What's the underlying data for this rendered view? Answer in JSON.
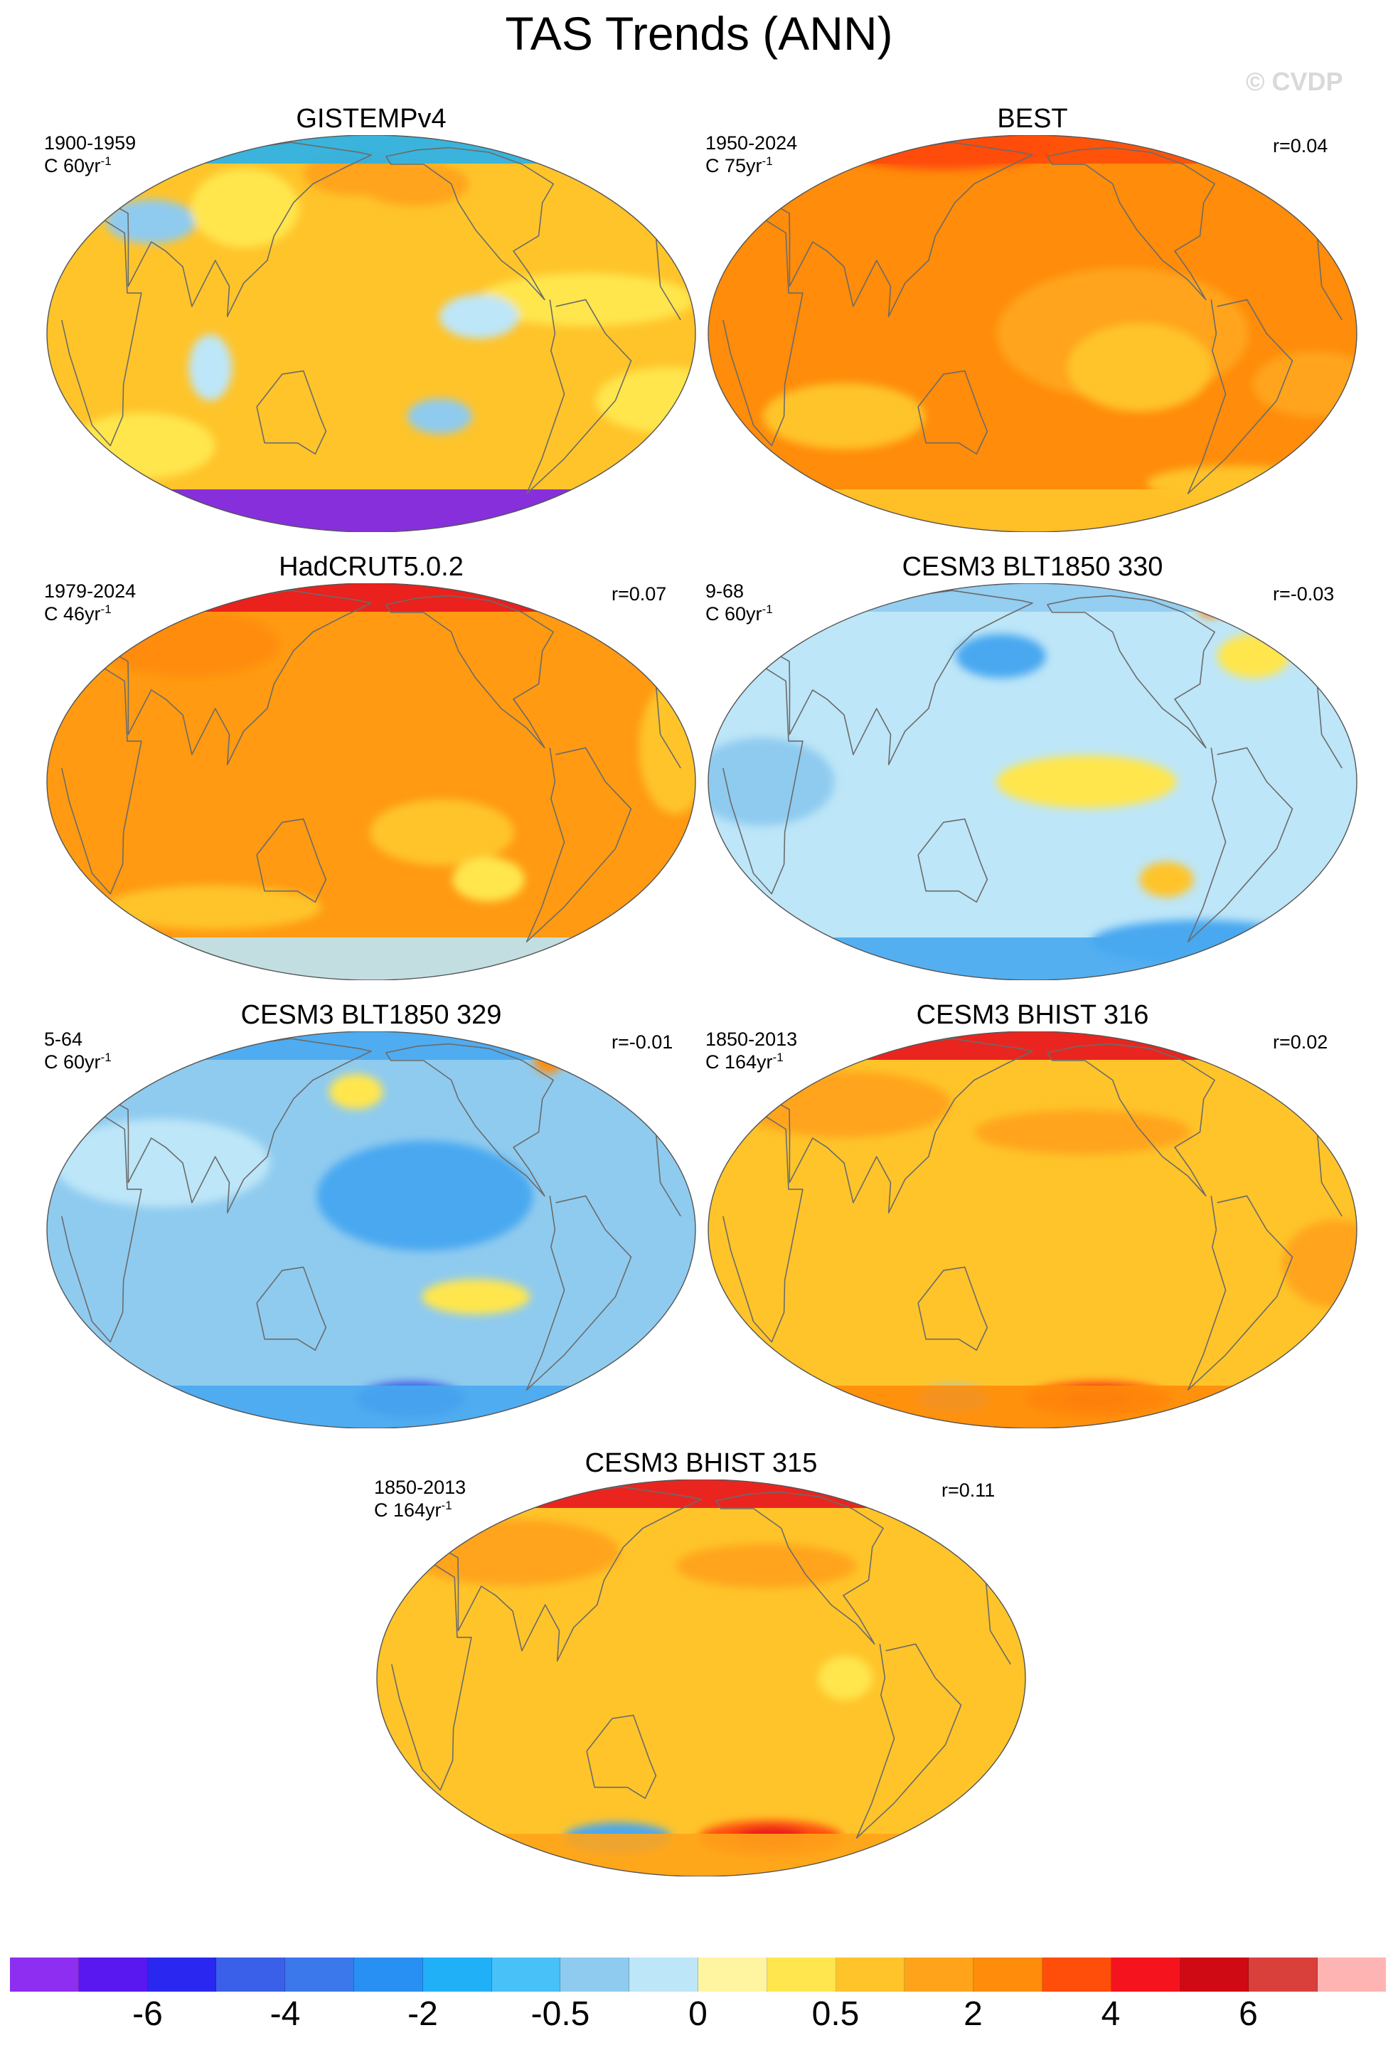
{
  "title": "TAS Trends (ANN)",
  "watermark": "© CVDP",
  "panels": [
    {
      "title": "GISTEMPv4",
      "period": "1900-1959",
      "units": "C 60yr",
      "r": "",
      "base": "#ffc42a",
      "blobs": [
        {
          "c": "#ffe64e",
          "lon": -60,
          "lat": 10,
          "rx": 60,
          "ry": 12
        },
        {
          "c": "#ffe64e",
          "lon": 40,
          "lat": -35,
          "rx": 40,
          "ry": 15
        },
        {
          "c": "#bde6f8",
          "lon": -120,
          "lat": 5,
          "rx": 22,
          "ry": 10
        },
        {
          "c": "#8fcbef",
          "lon": -140,
          "lat": -25,
          "rx": 18,
          "ry": 8
        },
        {
          "c": "#8fcbef",
          "lon": 45,
          "lat": 35,
          "rx": 25,
          "ry": 10
        },
        {
          "c": "#ffe64e",
          "lon": 100,
          "lat": 40,
          "rx": 30,
          "ry": 18
        },
        {
          "c": "#ffa41a",
          "lon": 170,
          "lat": 55,
          "rx": 30,
          "ry": 10
        },
        {
          "c": "#ffa41a",
          "lon": -150,
          "lat": 50,
          "rx": 30,
          "ry": 10
        },
        {
          "c": "#bde6f8",
          "lon": 90,
          "lat": -10,
          "rx": 12,
          "ry": 15
        },
        {
          "c": "#ffe64e",
          "lon": -10,
          "lat": -20,
          "rx": 40,
          "ry": 15
        }
      ],
      "south": "#7b1ff0",
      "north": "#25b3f0"
    },
    {
      "title": "BEST",
      "period": "1950-2024",
      "units": "C 75yr",
      "r": "r=0.04",
      "base": "#ff8c0a",
      "blobs": [
        {
          "c": "#ffa41a",
          "lon": -130,
          "lat": 0,
          "rx": 70,
          "ry": 30
        },
        {
          "c": "#ffc42a",
          "lon": -120,
          "lat": -10,
          "rx": 40,
          "ry": 20
        },
        {
          "c": "#ffc42a",
          "lon": 70,
          "lat": -25,
          "rx": 45,
          "ry": 15
        },
        {
          "c": "#ffa41a",
          "lon": -20,
          "lat": -15,
          "rx": 35,
          "ry": 15
        },
        {
          "c": "#ff4d0a",
          "lon": 100,
          "lat": 72,
          "rx": 60,
          "ry": 10
        },
        {
          "c": "#ffc42a",
          "lon": -40,
          "lat": -50,
          "rx": 50,
          "ry": 8
        }
      ],
      "south": "#ffc42a",
      "north": "#ff4d0a"
    },
    {
      "title": "HadCRUT5.0.2",
      "period": "1979-2024",
      "units": "C 46yr",
      "r": "r=0.07",
      "base": "#ff9a12",
      "blobs": [
        {
          "c": "#ffc42a",
          "lon": -140,
          "lat": -15,
          "rx": 40,
          "ry": 15
        },
        {
          "c": "#ffc42a",
          "lon": 80,
          "lat": -40,
          "rx": 60,
          "ry": 10
        },
        {
          "c": "#ffe64e",
          "lon": -110,
          "lat": -30,
          "rx": 20,
          "ry": 10
        },
        {
          "c": "#ffc42a",
          "lon": -10,
          "lat": 10,
          "rx": 20,
          "ry": 30
        },
        {
          "c": "#ff8c0a",
          "lon": 60,
          "lat": 45,
          "rx": 50,
          "ry": 15
        }
      ],
      "south": "#bde6f8",
      "north": "#e8141e"
    },
    {
      "title": "CESM3 BLT1850 330",
      "period": "9-68",
      "units": "C 60yr",
      "r": "r=-0.03",
      "base": "#bde6f8",
      "blobs": [
        {
          "c": "#8fcbef",
          "lon": 30,
          "lat": 0,
          "rx": 40,
          "ry": 20
        },
        {
          "c": "#ffe64e",
          "lon": -150,
          "lat": 0,
          "rx": 50,
          "ry": 12
        },
        {
          "c": "#ffc42a",
          "lon": -100,
          "lat": -30,
          "rx": 15,
          "ry": 8
        },
        {
          "c": "#48a8f0",
          "lon": -60,
          "lat": -55,
          "rx": 60,
          "ry": 10
        },
        {
          "c": "#48a8f0",
          "lon": 160,
          "lat": 40,
          "rx": 25,
          "ry": 10
        },
        {
          "c": "#ffe64e",
          "lon": -40,
          "lat": 40,
          "rx": 20,
          "ry": 10
        },
        {
          "c": "#ff8c0a",
          "lon": -35,
          "lat": 65,
          "rx": 8,
          "ry": 6
        }
      ],
      "south": "#48a8f0",
      "north": "#8fcbef"
    },
    {
      "title": "CESM3 BLT1850 329",
      "period": "5-64",
      "units": "C 60yr",
      "r": "r=-0.01",
      "base": "#8fcbef",
      "blobs": [
        {
          "c": "#48a8f0",
          "lon": -150,
          "lat": 10,
          "rx": 60,
          "ry": 25
        },
        {
          "c": "#bde6f8",
          "lon": 60,
          "lat": 20,
          "rx": 60,
          "ry": 20
        },
        {
          "c": "#ffe64e",
          "lon": -120,
          "lat": -20,
          "rx": 30,
          "ry": 8
        },
        {
          "c": "#3a5fe8",
          "lon": -150,
          "lat": -60,
          "rx": 30,
          "ry": 8
        },
        {
          "c": "#ff8c0a",
          "lon": -45,
          "lat": 60,
          "rx": 8,
          "ry": 6
        },
        {
          "c": "#ffe64e",
          "lon": 170,
          "lat": 45,
          "rx": 15,
          "ry": 8
        }
      ],
      "south": "#48a8f0",
      "north": "#48a8f0"
    },
    {
      "title": "CESM3 BHIST 316",
      "period": "1850-2013",
      "units": "C 164yr",
      "r": "r=0.02",
      "base": "#ffc42a",
      "blobs": [
        {
          "c": "#ffa41a",
          "lon": -150,
          "lat": 30,
          "rx": 60,
          "ry": 10
        },
        {
          "c": "#ffa41a",
          "lon": 60,
          "lat": 40,
          "rx": 60,
          "ry": 15
        },
        {
          "c": "#ff4d0a",
          "lon": -130,
          "lat": -60,
          "rx": 40,
          "ry": 8
        },
        {
          "c": "#e8141e",
          "lon": -130,
          "lat": -60,
          "rx": 20,
          "ry": 5
        },
        {
          "c": "#8fcbef",
          "lon": 120,
          "lat": -60,
          "rx": 20,
          "ry": 6
        },
        {
          "c": "#ffa41a",
          "lon": -10,
          "lat": -10,
          "rx": 30,
          "ry": 20
        }
      ],
      "south": "#ff8c0a",
      "north": "#e8141e"
    },
    {
      "title": "CESM3 BHIST 315",
      "period": "1850-2013",
      "units": "C 164yr",
      "r": "r=0.11",
      "base": "#ffc42a",
      "blobs": [
        {
          "c": "#ffa41a",
          "lon": 60,
          "lat": 40,
          "rx": 60,
          "ry": 15
        },
        {
          "c": "#ffa41a",
          "lon": -140,
          "lat": 35,
          "rx": 50,
          "ry": 10
        },
        {
          "c": "#ff4d0a",
          "lon": -130,
          "lat": -55,
          "rx": 40,
          "ry": 8
        },
        {
          "c": "#e8141e",
          "lon": -130,
          "lat": -55,
          "rx": 20,
          "ry": 5
        },
        {
          "c": "#48a8f0",
          "lon": 120,
          "lat": -55,
          "rx": 30,
          "ry": 7
        },
        {
          "c": "#ffe64e",
          "lon": -100,
          "lat": 0,
          "rx": 15,
          "ry": 10
        }
      ],
      "south": "#ffa41a",
      "north": "#e8141e"
    }
  ],
  "colorbar": {
    "colors": [
      "#8d2ef0",
      "#5a18f0",
      "#2a28f0",
      "#3a5fe8",
      "#3a78ec",
      "#2890f3",
      "#20b0f8",
      "#48c0f8",
      "#8fcbef",
      "#bde6f8",
      "#fff5a0",
      "#ffe64e",
      "#ffc42a",
      "#ffa41a",
      "#ff8c0a",
      "#ff4d0a",
      "#f5141e",
      "#cf0a14",
      "#d9403c",
      "#ffb4b4"
    ],
    "labels": [
      "-6",
      "-4",
      "-2",
      "-0.5",
      "0",
      "0.5",
      "2",
      "4",
      "6"
    ]
  }
}
